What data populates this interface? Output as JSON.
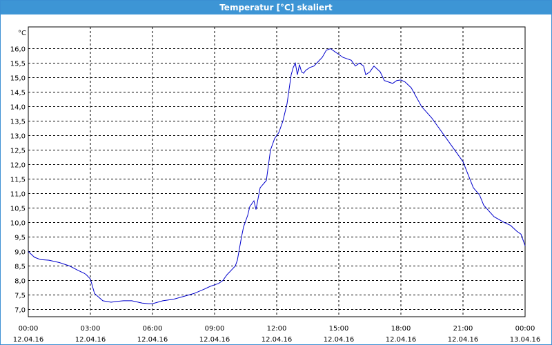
{
  "window": {
    "title": "Temperatur [°C] skaliert"
  },
  "colors": {
    "titlebar": "#3d95d5",
    "line": "#0000cc",
    "grid": "#000000"
  },
  "chart_data": {
    "type": "line",
    "title": "Temperatur [°C] skaliert",
    "yunit": "°C",
    "ylim": [
      6.75,
      16.75
    ],
    "xlim": [
      0,
      24
    ],
    "grid": true,
    "yticks": [
      "16,0",
      "15,5",
      "15,0",
      "14,5",
      "14,0",
      "13,5",
      "13,0",
      "12,5",
      "12,0",
      "11,5",
      "11,0",
      "10,5",
      "10,0",
      "9,5",
      "9,0",
      "8,5",
      "8,0",
      "7,5",
      "7,0"
    ],
    "xticks": [
      {
        "time": "00:00",
        "date": "12.04.16"
      },
      {
        "time": "03:00",
        "date": "12.04.16"
      },
      {
        "time": "06:00",
        "date": "12.04.16"
      },
      {
        "time": "09:00",
        "date": "12.04.16"
      },
      {
        "time": "12:00",
        "date": "12.04.16"
      },
      {
        "time": "15:00",
        "date": "12.04.16"
      },
      {
        "time": "18:00",
        "date": "12.04.16"
      },
      {
        "time": "21:00",
        "date": "12.04.16"
      },
      {
        "time": "00:00",
        "date": "13.04.16"
      }
    ],
    "series": [
      {
        "x": [
          0.0,
          0.3,
          0.6,
          1.0,
          1.5,
          2.0,
          2.4,
          2.7,
          2.8,
          3.0,
          3.2,
          3.6,
          4.0,
          4.3,
          4.6,
          4.8,
          5.0,
          5.5,
          5.8,
          6.0,
          6.5,
          7.0,
          7.5,
          8.0,
          8.5,
          8.8,
          9.0,
          9.2,
          9.4,
          9.6,
          9.8,
          10.0,
          10.1,
          10.3,
          10.4,
          10.6,
          10.7,
          10.9,
          11.0,
          11.2,
          11.5,
          11.7,
          11.9,
          12.1,
          12.3,
          12.5,
          12.6,
          12.7,
          12.8,
          12.9,
          13.0,
          13.1,
          13.2,
          13.3,
          13.4,
          13.6,
          13.8,
          14.0,
          14.2,
          14.4,
          14.6,
          14.8,
          15.0,
          15.2,
          15.4,
          15.6,
          15.8,
          16.0,
          16.2,
          16.3,
          16.5,
          16.7,
          17.0,
          17.2,
          17.6,
          17.8,
          18.0,
          18.2,
          18.5,
          19.0,
          19.5,
          20.0,
          20.5,
          21.0,
          21.5,
          21.8,
          22.0,
          22.5,
          23.0,
          23.3,
          23.6,
          23.8,
          24.0
        ],
        "values": [
          9.0,
          8.8,
          8.72,
          8.7,
          8.62,
          8.5,
          8.35,
          8.25,
          8.2,
          8.05,
          7.55,
          7.3,
          7.25,
          7.28,
          7.3,
          7.3,
          7.3,
          7.22,
          7.2,
          7.2,
          7.3,
          7.35,
          7.45,
          7.55,
          7.7,
          7.8,
          7.85,
          7.9,
          8.0,
          8.2,
          8.35,
          8.5,
          8.7,
          9.5,
          9.85,
          10.25,
          10.55,
          10.75,
          10.45,
          11.2,
          11.45,
          12.5,
          12.9,
          13.1,
          13.5,
          14.1,
          14.6,
          15.1,
          15.35,
          15.5,
          15.1,
          15.45,
          15.2,
          15.15,
          15.25,
          15.35,
          15.4,
          15.55,
          15.7,
          15.95,
          16.0,
          15.9,
          15.8,
          15.7,
          15.65,
          15.6,
          15.4,
          15.5,
          15.4,
          15.1,
          15.2,
          15.4,
          15.2,
          14.9,
          14.8,
          14.9,
          14.92,
          14.85,
          14.65,
          14.0,
          13.6,
          13.1,
          12.6,
          12.1,
          11.2,
          10.95,
          10.6,
          10.2,
          10.0,
          9.9,
          9.7,
          9.6,
          9.2
        ]
      }
    ]
  }
}
